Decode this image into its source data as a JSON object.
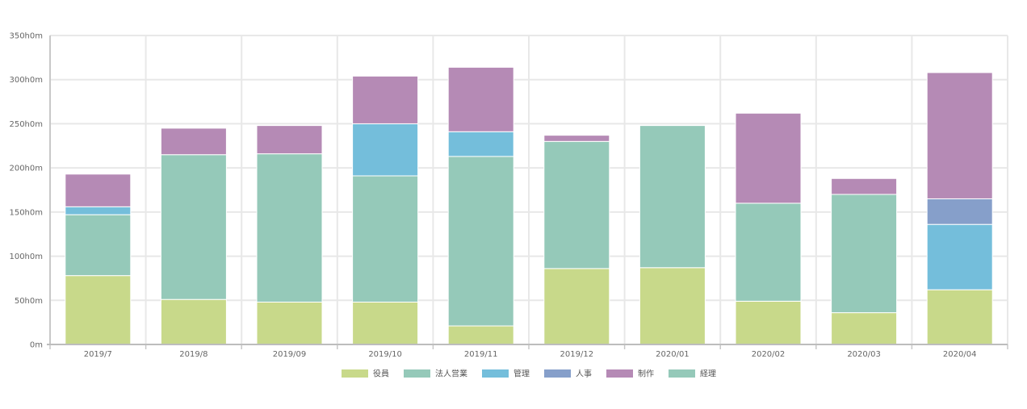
{
  "chart_data": {
    "type": "bar",
    "stacked": true,
    "categories": [
      "2019/7",
      "2019/8",
      "2019/09",
      "2019/10",
      "2019/11",
      "2019/12",
      "2020/01",
      "2020/02",
      "2020/03",
      "2020/04"
    ],
    "y_ticks": [
      "0m",
      "50h0m",
      "100h0m",
      "150h0m",
      "200h0m",
      "250h0m",
      "300h0m",
      "350h0m"
    ],
    "ylim": [
      0,
      350
    ],
    "grid": true,
    "legend_position": "bottom",
    "series": [
      {
        "name": "役員",
        "color": "#c8d98a",
        "values": [
          78,
          51,
          48,
          48,
          21,
          86,
          87,
          49,
          36,
          62
        ]
      },
      {
        "name": "法人営業",
        "color": "#95c9b9",
        "values": [
          69,
          164,
          168,
          143,
          192,
          144,
          161,
          111,
          134,
          0
        ]
      },
      {
        "name": "管理",
        "color": "#74bedb",
        "values": [
          9,
          0,
          0,
          59,
          28,
          0,
          0,
          0,
          0,
          74
        ]
      },
      {
        "name": "人事",
        "color": "#869fca",
        "values": [
          0,
          0,
          0,
          0,
          0,
          0,
          0,
          0,
          0,
          29
        ]
      },
      {
        "name": "制作",
        "color": "#b58ab5",
        "values": [
          37,
          30,
          32,
          54,
          73,
          7,
          0,
          102,
          18,
          143
        ]
      },
      {
        "name": "経理",
        "color": "#95c9b9",
        "values": [
          0,
          0,
          0,
          0,
          0,
          0,
          0,
          0,
          0,
          0
        ]
      }
    ]
  }
}
